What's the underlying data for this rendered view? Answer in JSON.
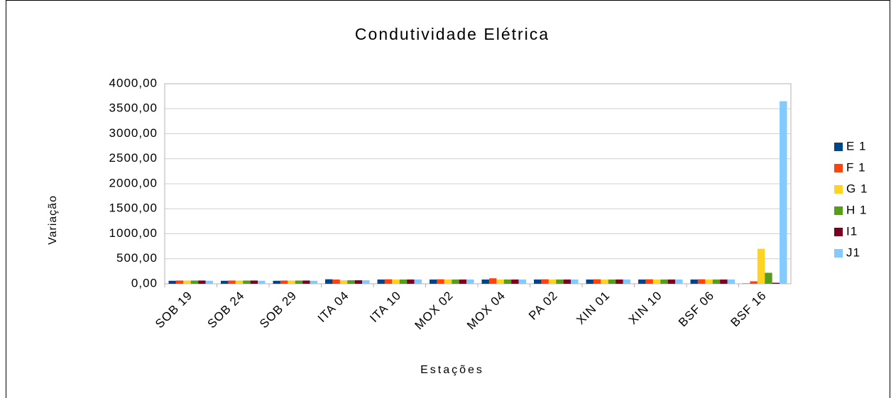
{
  "chart_data": {
    "type": "bar",
    "title": "Condutividade Elétrica",
    "x_label": "Estações",
    "y_label": "Variação",
    "categories": [
      "SOB 19",
      "SOB 24",
      "SOB 29",
      "ITA 04",
      "ITA 10",
      "MOX 02",
      "MOX 04",
      "PA 02",
      "XIN 01",
      "XIN 10",
      "BSF 06",
      "BSF 16"
    ],
    "series": [
      {
        "name": "E 1",
        "color": "#004586",
        "values": [
          60,
          60,
          60,
          90,
          85,
          85,
          85,
          85,
          85,
          85,
          85,
          5
        ]
      },
      {
        "name": "F 1",
        "color": "#ff420e",
        "values": [
          65,
          65,
          65,
          85,
          90,
          90,
          110,
          90,
          90,
          90,
          90,
          50
        ]
      },
      {
        "name": "G 1",
        "color": "#ffd320",
        "values": [
          65,
          65,
          65,
          70,
          85,
          85,
          85,
          85,
          85,
          85,
          85,
          700
        ]
      },
      {
        "name": "H 1",
        "color": "#579d1c",
        "values": [
          65,
          65,
          65,
          70,
          85,
          85,
          85,
          85,
          85,
          85,
          85,
          220
        ]
      },
      {
        "name": "I1",
        "color": "#7e0021",
        "values": [
          65,
          65,
          65,
          70,
          85,
          85,
          85,
          85,
          85,
          85,
          85,
          20
        ]
      },
      {
        "name": "J1",
        "color": "#83caff",
        "values": [
          60,
          60,
          60,
          70,
          85,
          85,
          85,
          85,
          85,
          85,
          85,
          3650
        ]
      }
    ],
    "ylim": [
      0,
      4000
    ],
    "yticks": [
      {
        "value": 0,
        "label": "0,00"
      },
      {
        "value": 500,
        "label": "500,00"
      },
      {
        "value": 1000,
        "label": "1000,00"
      },
      {
        "value": 1500,
        "label": "1500,00"
      },
      {
        "value": 2000,
        "label": "2000,00"
      },
      {
        "value": 2500,
        "label": "2500,00"
      },
      {
        "value": 3000,
        "label": "3000,00"
      },
      {
        "value": 3500,
        "label": "3500,00"
      },
      {
        "value": 4000,
        "label": "4000,00"
      }
    ],
    "grid": true,
    "legend": "right"
  }
}
